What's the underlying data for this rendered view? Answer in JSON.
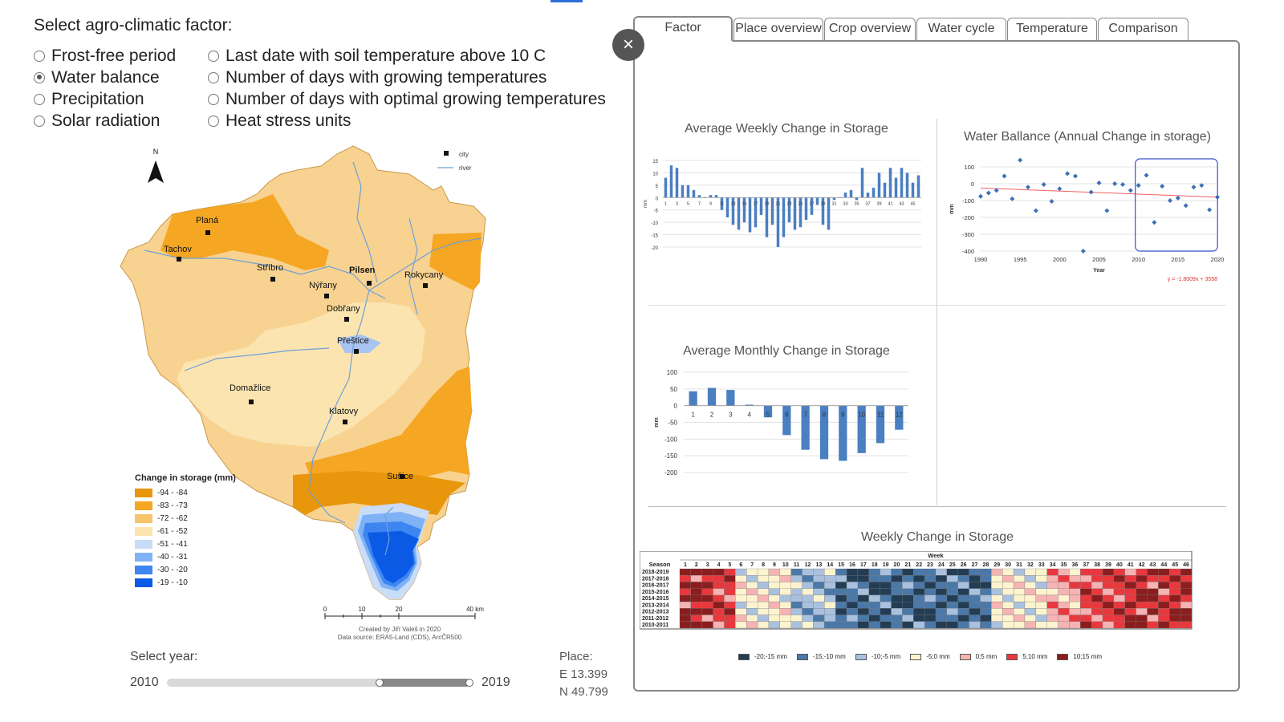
{
  "factor_selector": {
    "title": "Select agro-climatic factor:",
    "options_col1": [
      {
        "label": "Frost-free period",
        "selected": false
      },
      {
        "label": "Water balance",
        "selected": true
      },
      {
        "label": "Precipitation",
        "selected": false
      },
      {
        "label": "Solar radiation",
        "selected": false
      }
    ],
    "options_col2": [
      {
        "label": "Last date with soil temperature above 10 C",
        "selected": false
      },
      {
        "label": "Number of days with growing temperatures",
        "selected": false
      },
      {
        "label": "Number of days with optimal growing temperatures",
        "selected": false
      },
      {
        "label": "Heat stress units",
        "selected": false
      }
    ]
  },
  "map": {
    "north": "N",
    "key_city": "city",
    "key_river": "river",
    "cities": [
      {
        "name": "Planá"
      },
      {
        "name": "Tachov"
      },
      {
        "name": "Stříbro"
      },
      {
        "name": "Pilsen"
      },
      {
        "name": "Nýřany"
      },
      {
        "name": "Rokycany"
      },
      {
        "name": "Dobřany"
      },
      {
        "name": "Přeštice"
      },
      {
        "name": "Domažlice"
      },
      {
        "name": "Klatovy"
      },
      {
        "name": "Sušice"
      }
    ],
    "legend_title": "Change in storage (mm)",
    "legend": [
      {
        "label": "-94 - -84",
        "color": "#e8960c"
      },
      {
        "label": "-83 - -73",
        "color": "#f5a623"
      },
      {
        "label": "-72 - -62",
        "color": "#f7c36b"
      },
      {
        "label": "-61 - -52",
        "color": "#fbe4b0"
      },
      {
        "label": "-51 - -41",
        "color": "#c9dcf8"
      },
      {
        "label": "-40 - -31",
        "color": "#7fb2f5"
      },
      {
        "label": "-30 - -20",
        "color": "#3d85f0"
      },
      {
        "label": "-19 - -10",
        "color": "#0a5ae6"
      }
    ],
    "scale": [
      "0",
      "10",
      "20",
      "40 km"
    ],
    "credit_line1": "Created by Jiří Valeš in 2020",
    "credit_line2": "Data source: ERA5-Land (CDS), ArcČR500"
  },
  "year_slider": {
    "label": "Select year:",
    "min": "2010",
    "max": "2019",
    "range_start": 2017,
    "range_end": 2019
  },
  "place": {
    "label": "Place:",
    "lon": "E 13.399",
    "lat": "N 49.799"
  },
  "tabs": [
    {
      "label": "Factor",
      "active": true
    },
    {
      "label": "Place overview",
      "active": false
    },
    {
      "label": "Crop overview",
      "active": false
    },
    {
      "label": "Water cycle",
      "active": false
    },
    {
      "label": "Temperature",
      "active": false
    },
    {
      "label": "Comparison",
      "active": false
    }
  ],
  "close_label": "×",
  "chart_data": [
    {
      "type": "bar",
      "title": "Average Weekly Change in Storage",
      "ylabel": "mm",
      "ylim": [
        -20,
        15
      ],
      "yticks": [
        "15",
        "10",
        "5",
        "0",
        "-5",
        "-10",
        "-15",
        "-20"
      ],
      "categories": [
        1,
        2,
        3,
        4,
        5,
        6,
        7,
        8,
        9,
        10,
        11,
        12,
        13,
        14,
        15,
        16,
        17,
        18,
        19,
        20,
        21,
        22,
        23,
        24,
        25,
        26,
        27,
        28,
        29,
        30,
        31,
        32,
        33,
        34,
        35,
        36,
        37,
        38,
        39,
        40,
        41,
        42,
        43,
        44,
        45,
        46
      ],
      "xtick_labels": [
        "1",
        "3",
        "5",
        "7",
        "9",
        "11",
        "13",
        "15",
        "17",
        "19",
        "21",
        "23",
        "25",
        "27",
        "29",
        "31",
        "33",
        "35",
        "37",
        "39",
        "41",
        "43",
        "45"
      ],
      "values": [
        8,
        13,
        12,
        5,
        5,
        3,
        1,
        0,
        1,
        1,
        -5,
        -8,
        -11,
        -13,
        -10,
        -14,
        -12,
        -7,
        -16,
        -11,
        -20,
        -16,
        -10,
        -13,
        -12,
        -9,
        -7,
        -3,
        -11,
        -13,
        -1,
        0,
        2,
        3,
        -1,
        12,
        2,
        4,
        10,
        6,
        12,
        8,
        12,
        10,
        6,
        9
      ]
    },
    {
      "type": "scatter",
      "title": "Water Ballance (Annual Change in storage)",
      "ylabel": "mm",
      "xlabel": "Year",
      "xlim": [
        1990,
        2020
      ],
      "ylim": [
        -400,
        100
      ],
      "xticks": [
        "1990",
        "1995",
        "2000",
        "2005",
        "2010",
        "2015",
        "2020"
      ],
      "yticks": [
        "100",
        "0",
        "-100",
        "-200",
        "-300",
        "-400"
      ],
      "x": [
        1990,
        1991,
        1992,
        1993,
        1994,
        1995,
        1996,
        1997,
        1998,
        1999,
        2000,
        2001,
        2002,
        2003,
        2004,
        2005,
        2006,
        2007,
        2008,
        2009,
        2010,
        2011,
        2012,
        2013,
        2014,
        2015,
        2016,
        2017,
        2018,
        2019,
        2020
      ],
      "y": [
        -75,
        -55,
        -40,
        45,
        -90,
        140,
        -20,
        -160,
        -5,
        -105,
        -30,
        60,
        45,
        -400,
        -50,
        5,
        -160,
        0,
        -5,
        -40,
        -10,
        50,
        -230,
        -15,
        -100,
        -85,
        -130,
        -20,
        -10,
        -155,
        -80
      ],
      "trend_label": "y = -1.8009x + 3558",
      "highlight_range": [
        2010,
        2019
      ]
    },
    {
      "type": "bar",
      "title": "Average Monthly Change in Storage",
      "ylabel": "mm",
      "ylim": [
        -200,
        100
      ],
      "yticks": [
        "100",
        "50",
        "0",
        "-50",
        "-100",
        "-150",
        "-200"
      ],
      "categories": [
        "1",
        "2",
        "3",
        "4",
        "5",
        "6",
        "7",
        "8",
        "9",
        "10",
        "11",
        "12"
      ],
      "values": [
        43,
        53,
        47,
        3,
        -35,
        -88,
        -132,
        -160,
        -165,
        -142,
        -112,
        -72
      ]
    },
    {
      "type": "heatmap",
      "title": "Weekly Change in Storage",
      "column_header": "Week",
      "row_header": "Season",
      "rows": [
        "2018-2019",
        "2017-2018",
        "2016-2017",
        "2015-2016",
        "2014-2015",
        "2013-2014",
        "2012-2013",
        "2011-2012",
        "2010-2011"
      ],
      "weeks": 46,
      "legend": [
        {
          "label": "-20;-15 mm",
          "color": "#233d55"
        },
        {
          "label": "-15;-10 mm",
          "color": "#4a78a8"
        },
        {
          "label": "-10;-5 mm",
          "color": "#a9c1de"
        },
        {
          "label": "-5;0 mm",
          "color": "#fdf4cf"
        },
        {
          "label": "0;5 mm",
          "color": "#f6b3b3"
        },
        {
          "label": "5;10 mm",
          "color": "#e8383d"
        },
        {
          "label": "10;15 mm",
          "color": "#8a1d1d"
        }
      ]
    }
  ]
}
